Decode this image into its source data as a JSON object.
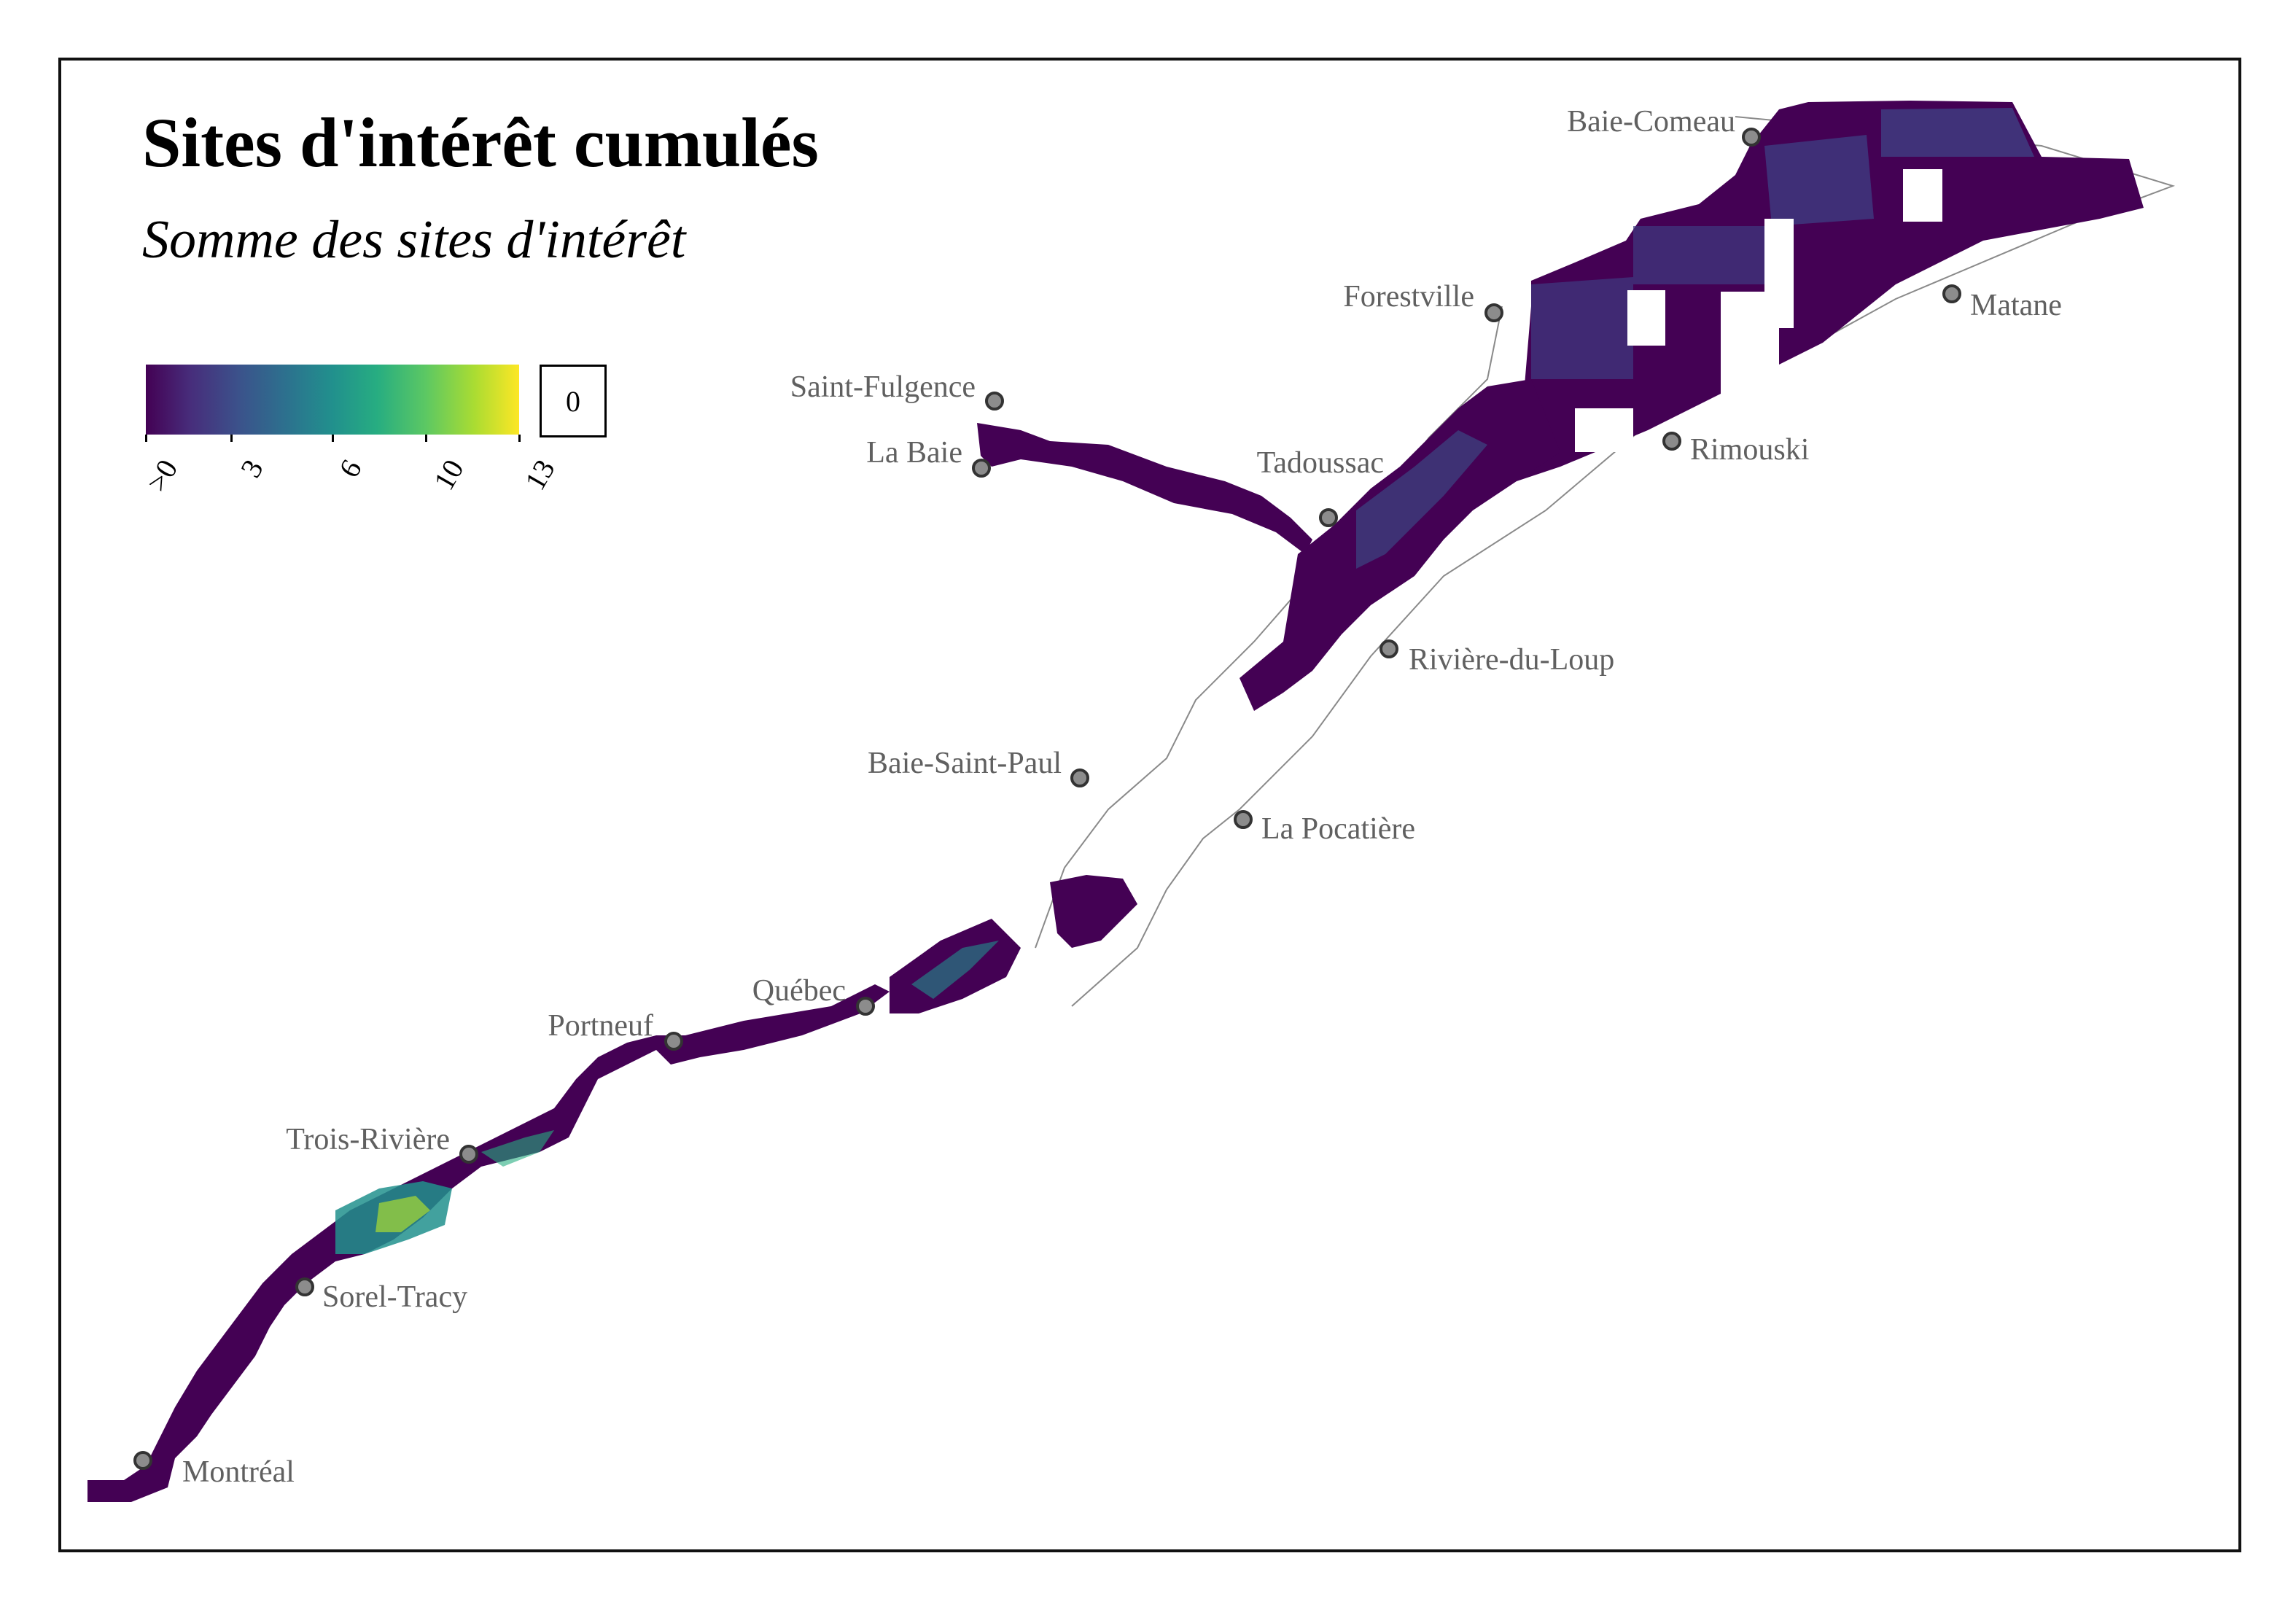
{
  "title": "Sites d'intérêt cumulés",
  "subtitle": "Somme des sites d'intérêt",
  "legend": {
    "ticks": [
      ">0",
      "3",
      "6",
      "10",
      "13"
    ],
    "zero_label": "0",
    "colors": [
      "#440154",
      "#3b528b",
      "#21908d",
      "#5cc863",
      "#fde725"
    ]
  },
  "cities": [
    {
      "id": "baie-comeau",
      "name": "Baie-Comeau"
    },
    {
      "id": "forestville",
      "name": "Forestville"
    },
    {
      "id": "matane",
      "name": "Matane"
    },
    {
      "id": "saint-fulgence",
      "name": "Saint-Fulgence"
    },
    {
      "id": "la-baie",
      "name": "La Baie"
    },
    {
      "id": "tadoussac",
      "name": "Tadoussac"
    },
    {
      "id": "rimouski",
      "name": "Rimouski"
    },
    {
      "id": "riviere-du-loup",
      "name": "Rivière-du-Loup"
    },
    {
      "id": "baie-saint-paul",
      "name": "Baie-Saint-Paul"
    },
    {
      "id": "la-pocatiere",
      "name": "La Pocatière"
    },
    {
      "id": "quebec",
      "name": "Québec"
    },
    {
      "id": "portneuf",
      "name": "Portneuf"
    },
    {
      "id": "trois-riviere",
      "name": "Trois-Rivière"
    },
    {
      "id": "sorel-tracy",
      "name": "Sorel-Tracy"
    },
    {
      "id": "montreal",
      "name": "Montréal"
    }
  ]
}
